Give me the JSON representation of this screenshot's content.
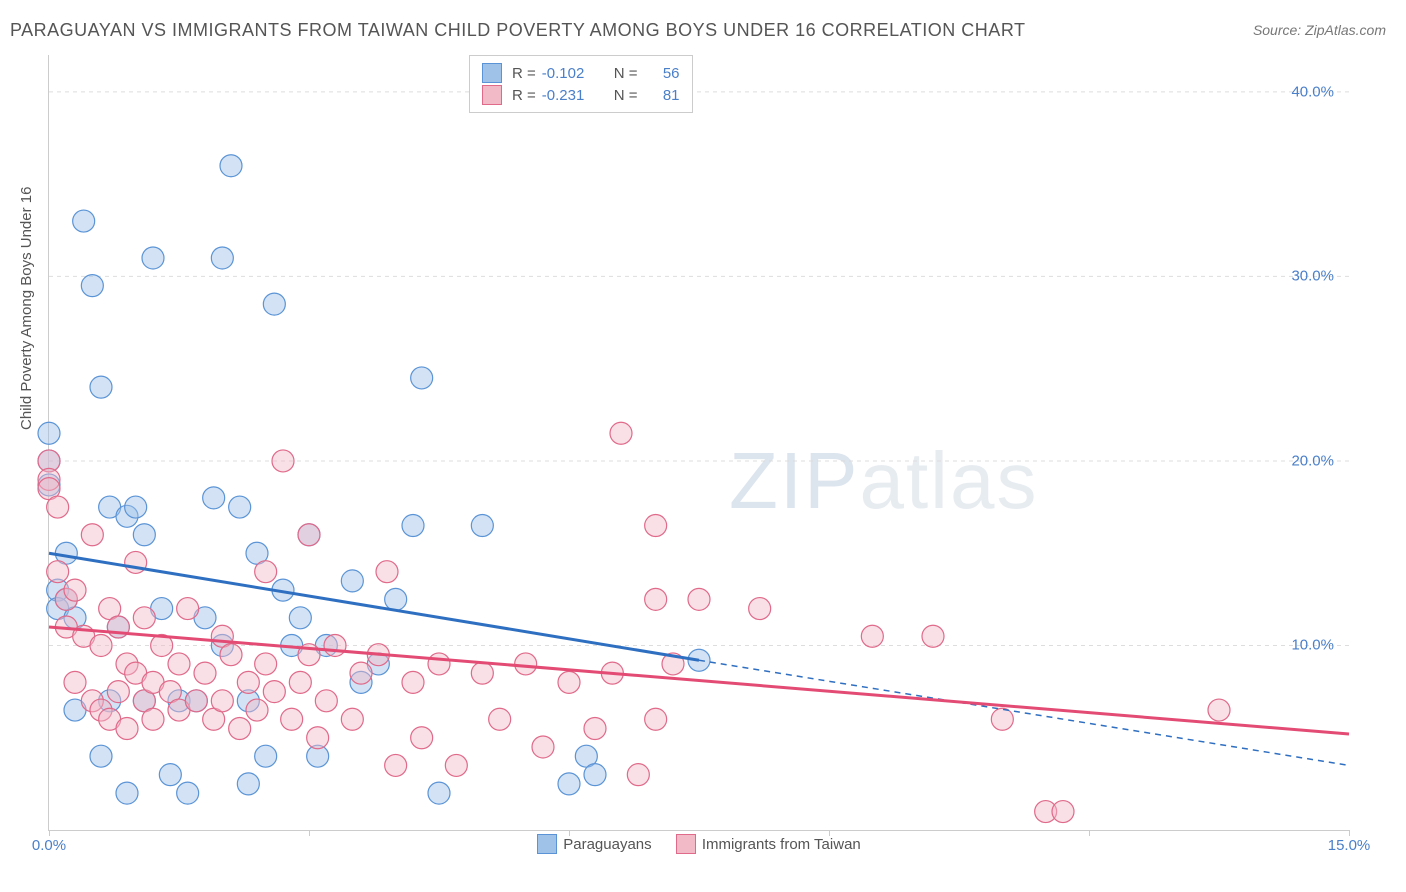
{
  "title": "PARAGUAYAN VS IMMIGRANTS FROM TAIWAN CHILD POVERTY AMONG BOYS UNDER 16 CORRELATION CHART",
  "source": "Source: ZipAtlas.com",
  "watermark_zip": "ZIP",
  "watermark_atlas": "atlas",
  "chart": {
    "type": "scatter",
    "ylabel": "Child Poverty Among Boys Under 16",
    "xlim": [
      0,
      15
    ],
    "ylim": [
      0,
      42
    ],
    "x_ticks": [
      0,
      3,
      6,
      9,
      12,
      15
    ],
    "x_tick_labels": [
      "0.0%",
      "",
      "",
      "",
      "",
      "15.0%"
    ],
    "y_ticks": [
      10,
      20,
      30,
      40
    ],
    "y_tick_labels": [
      "10.0%",
      "20.0%",
      "30.0%",
      "40.0%"
    ],
    "background_color": "#ffffff",
    "grid_color": "#dddddd",
    "axis_color": "#cccccc",
    "marker_radius": 11,
    "marker_opacity": 0.45,
    "series": [
      {
        "name": "Paraguayans",
        "color_fill": "#9ec2e8",
        "color_stroke": "#5b94d6",
        "R": "-0.102",
        "N": "56",
        "trend": {
          "x1": 0,
          "y1": 15.0,
          "x2": 7.5,
          "y2": 9.2,
          "x2_dash": 15,
          "y2_dash": 3.5,
          "color": "#2f6fc1",
          "width": 3
        },
        "points": [
          [
            0.0,
            21.5
          ],
          [
            0.0,
            20.0
          ],
          [
            0.0,
            18.7
          ],
          [
            0.1,
            13.0
          ],
          [
            0.1,
            12.0
          ],
          [
            0.2,
            12.5
          ],
          [
            0.2,
            15.0
          ],
          [
            0.3,
            6.5
          ],
          [
            0.3,
            11.5
          ],
          [
            0.4,
            33.0
          ],
          [
            0.5,
            29.5
          ],
          [
            0.6,
            24.0
          ],
          [
            0.6,
            4.0
          ],
          [
            0.7,
            17.5
          ],
          [
            0.7,
            7.0
          ],
          [
            0.8,
            11.0
          ],
          [
            0.9,
            17.0
          ],
          [
            0.9,
            2.0
          ],
          [
            1.0,
            17.5
          ],
          [
            1.1,
            16.0
          ],
          [
            1.1,
            7.0
          ],
          [
            1.2,
            31.0
          ],
          [
            1.3,
            12.0
          ],
          [
            1.4,
            3.0
          ],
          [
            1.5,
            7.0
          ],
          [
            1.6,
            2.0
          ],
          [
            1.7,
            7.0
          ],
          [
            1.8,
            11.5
          ],
          [
            1.9,
            18.0
          ],
          [
            2.0,
            31.0
          ],
          [
            2.0,
            10.0
          ],
          [
            2.1,
            36.0
          ],
          [
            2.2,
            17.5
          ],
          [
            2.3,
            2.5
          ],
          [
            2.3,
            7.0
          ],
          [
            2.4,
            15.0
          ],
          [
            2.5,
            4.0
          ],
          [
            2.6,
            28.5
          ],
          [
            2.7,
            13.0
          ],
          [
            2.8,
            10.0
          ],
          [
            2.9,
            11.5
          ],
          [
            3.0,
            16.0
          ],
          [
            3.1,
            4.0
          ],
          [
            3.2,
            10.0
          ],
          [
            3.5,
            13.5
          ],
          [
            3.6,
            8.0
          ],
          [
            3.8,
            9.0
          ],
          [
            4.0,
            12.5
          ],
          [
            4.2,
            16.5
          ],
          [
            4.3,
            24.5
          ],
          [
            4.5,
            2.0
          ],
          [
            5.0,
            16.5
          ],
          [
            6.0,
            2.5
          ],
          [
            6.2,
            4.0
          ],
          [
            6.3,
            3.0
          ],
          [
            7.5,
            9.2
          ]
        ]
      },
      {
        "name": "Immigrants from Taiwan",
        "color_fill": "#f2b9c7",
        "color_stroke": "#e06a8a",
        "R": "-0.231",
        "N": "81",
        "trend": {
          "x1": 0,
          "y1": 11.0,
          "x2": 15,
          "y2": 5.2,
          "color": "#e34b74",
          "width": 3
        },
        "points": [
          [
            0.0,
            20.0
          ],
          [
            0.0,
            19.0
          ],
          [
            0.0,
            18.5
          ],
          [
            0.1,
            17.5
          ],
          [
            0.1,
            14.0
          ],
          [
            0.2,
            12.5
          ],
          [
            0.2,
            11.0
          ],
          [
            0.3,
            8.0
          ],
          [
            0.3,
            13.0
          ],
          [
            0.4,
            10.5
          ],
          [
            0.5,
            16.0
          ],
          [
            0.5,
            7.0
          ],
          [
            0.6,
            10.0
          ],
          [
            0.6,
            6.5
          ],
          [
            0.7,
            12.0
          ],
          [
            0.7,
            6.0
          ],
          [
            0.8,
            7.5
          ],
          [
            0.8,
            11.0
          ],
          [
            0.9,
            9.0
          ],
          [
            0.9,
            5.5
          ],
          [
            1.0,
            8.5
          ],
          [
            1.0,
            14.5
          ],
          [
            1.1,
            7.0
          ],
          [
            1.1,
            11.5
          ],
          [
            1.2,
            6.0
          ],
          [
            1.2,
            8.0
          ],
          [
            1.3,
            10.0
          ],
          [
            1.4,
            7.5
          ],
          [
            1.5,
            6.5
          ],
          [
            1.5,
            9.0
          ],
          [
            1.6,
            12.0
          ],
          [
            1.7,
            7.0
          ],
          [
            1.8,
            8.5
          ],
          [
            1.9,
            6.0
          ],
          [
            2.0,
            10.5
          ],
          [
            2.0,
            7.0
          ],
          [
            2.1,
            9.5
          ],
          [
            2.2,
            5.5
          ],
          [
            2.3,
            8.0
          ],
          [
            2.4,
            6.5
          ],
          [
            2.5,
            9.0
          ],
          [
            2.5,
            14.0
          ],
          [
            2.6,
            7.5
          ],
          [
            2.7,
            20.0
          ],
          [
            2.8,
            6.0
          ],
          [
            2.9,
            8.0
          ],
          [
            3.0,
            9.5
          ],
          [
            3.0,
            16.0
          ],
          [
            3.1,
            5.0
          ],
          [
            3.2,
            7.0
          ],
          [
            3.3,
            10.0
          ],
          [
            3.5,
            6.0
          ],
          [
            3.6,
            8.5
          ],
          [
            3.8,
            9.5
          ],
          [
            3.9,
            14.0
          ],
          [
            4.0,
            3.5
          ],
          [
            4.2,
            8.0
          ],
          [
            4.3,
            5.0
          ],
          [
            4.5,
            9.0
          ],
          [
            4.7,
            3.5
          ],
          [
            5.0,
            8.5
          ],
          [
            5.2,
            6.0
          ],
          [
            5.5,
            9.0
          ],
          [
            5.7,
            4.5
          ],
          [
            6.0,
            8.0
          ],
          [
            6.3,
            5.5
          ],
          [
            6.5,
            8.5
          ],
          [
            6.6,
            21.5
          ],
          [
            6.8,
            3.0
          ],
          [
            7.0,
            12.5
          ],
          [
            7.0,
            16.5
          ],
          [
            7.0,
            6.0
          ],
          [
            7.2,
            9.0
          ],
          [
            7.5,
            12.5
          ],
          [
            8.2,
            12.0
          ],
          [
            9.5,
            10.5
          ],
          [
            10.2,
            10.5
          ],
          [
            11.0,
            6.0
          ],
          [
            11.5,
            1.0
          ],
          [
            11.7,
            1.0
          ],
          [
            13.5,
            6.5
          ]
        ]
      }
    ]
  },
  "legend_bottom": {
    "items": [
      "Paraguayans",
      "Immigrants from Taiwan"
    ]
  }
}
